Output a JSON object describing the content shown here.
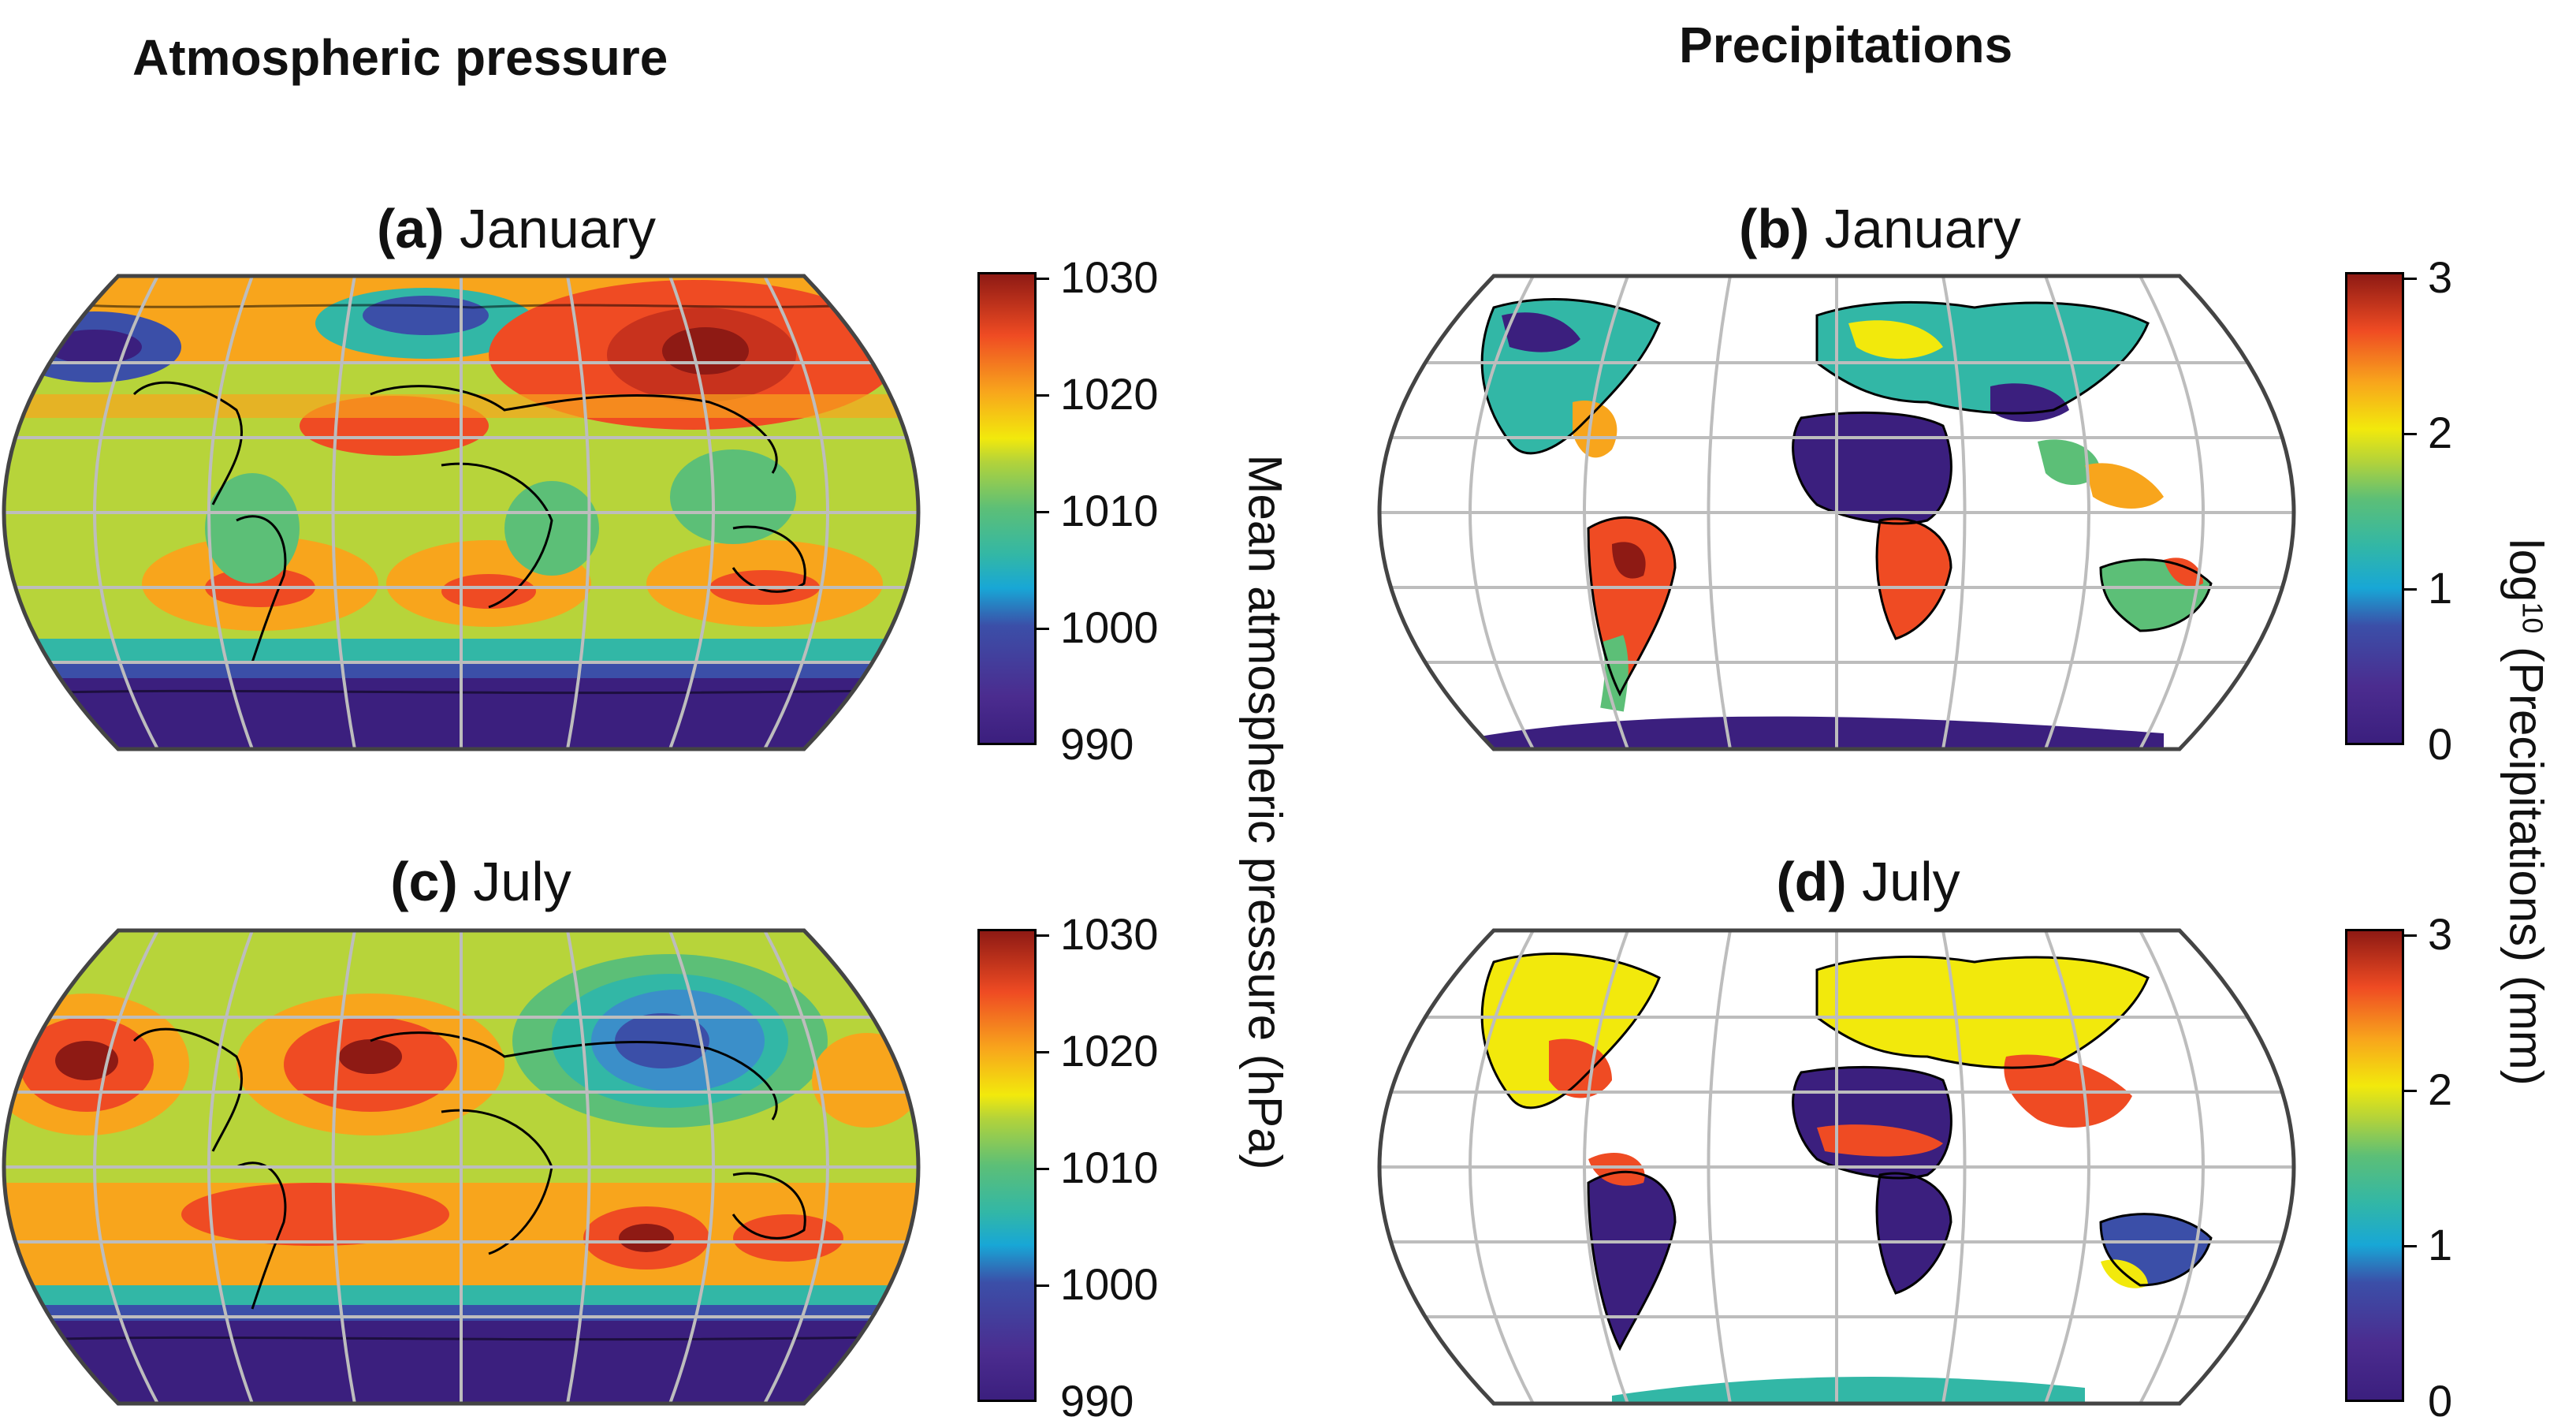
{
  "column_titles": {
    "left": "Atmospheric pressure",
    "right": "Precipitations"
  },
  "panels": {
    "a": {
      "letter": "(a)",
      "month": "January"
    },
    "b": {
      "letter": "(b)",
      "month": "January"
    },
    "c": {
      "letter": "(c)",
      "month": "July"
    },
    "d": {
      "letter": "(d)",
      "month": "July"
    }
  },
  "colorbars": {
    "pressure": {
      "ticks": [
        "1030",
        "1020",
        "1010",
        "1000",
        "990"
      ],
      "label": "Mean atmospheric pressure (hPa)"
    },
    "precip": {
      "ticks": [
        "3",
        "2",
        "1",
        "0"
      ],
      "label_prefix": "log",
      "label_sub": "10",
      "label_rest": " (Precipitations) (mm)"
    }
  },
  "colors": {
    "low": "#3b1f7e",
    "mid": "#5cbf77",
    "high": "#8e1a14",
    "graticule": "#bdbdbd"
  }
}
